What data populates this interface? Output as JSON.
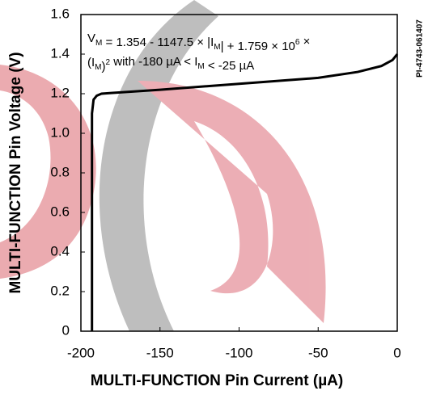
{
  "chart_data": {
    "type": "line",
    "xlabel": "MULTI-FUNCTION Pin Current (µA)",
    "ylabel": "MULTI-FUNCTION Pin Voltage (V)",
    "side_label": "PI-4743-061407",
    "annotation": [
      [
        "V",
        "M",
        " = 1.354 - 1147.5 × |I",
        "M",
        "| + 1.759 × 10",
        "6",
        " ×"
      ],
      [
        "(I",
        "M",
        ")",
        "2",
        " with -180 µA < I",
        "M",
        " < -25 µA"
      ]
    ],
    "x": [
      -193,
      -193,
      -192,
      -190,
      -187,
      -180,
      -150,
      -100,
      -50,
      -25,
      -10,
      -3,
      0
    ],
    "series": [
      {
        "color": "#000000",
        "values": [
          0,
          1.1,
          1.17,
          1.19,
          1.2,
          1.204,
          1.22,
          1.25,
          1.28,
          1.31,
          1.34,
          1.37,
          1.4
        ]
      }
    ],
    "xlim": [
      -200,
      0
    ],
    "xticks": [
      -200,
      -150,
      -100,
      -50,
      0
    ],
    "ylim": [
      0,
      1.6
    ],
    "yticks": [
      0,
      0.2,
      0.4,
      0.6,
      0.8,
      {
        "value": 1,
        "label": "1.0"
      },
      1.2,
      1.4,
      1.6
    ]
  }
}
